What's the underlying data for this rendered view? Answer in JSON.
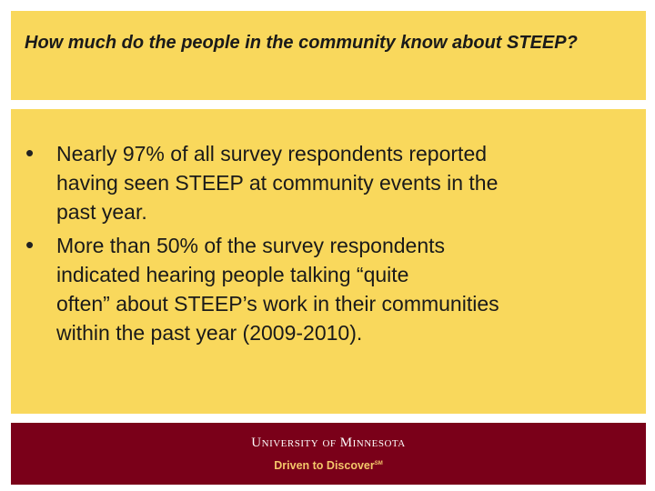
{
  "slide": {
    "title": "How much do the people in the community know about STEEP?",
    "bullets": [
      {
        "symbol": "•",
        "text": "Nearly 97% of all survey respondents reported\nhaving seen STEEP at community events in the\npast year."
      },
      {
        "symbol": "•",
        "text": "More than 50% of the survey respondents\nindicated hearing people talking “quite\noften” about STEEP’s work in their communities\nwithin the past year (2009-2010)."
      }
    ]
  },
  "footer": {
    "university_first": "U",
    "university_rest": "NIVERSITY",
    "of": "OF",
    "minnesota_first": "M",
    "minnesota_rest": "INNESOTA",
    "tagline": "Driven to Discover",
    "trademark": "SM"
  },
  "colors": {
    "panel": "#f9d85c",
    "footer": "#7a0019",
    "tagline": "#f4c66a"
  }
}
